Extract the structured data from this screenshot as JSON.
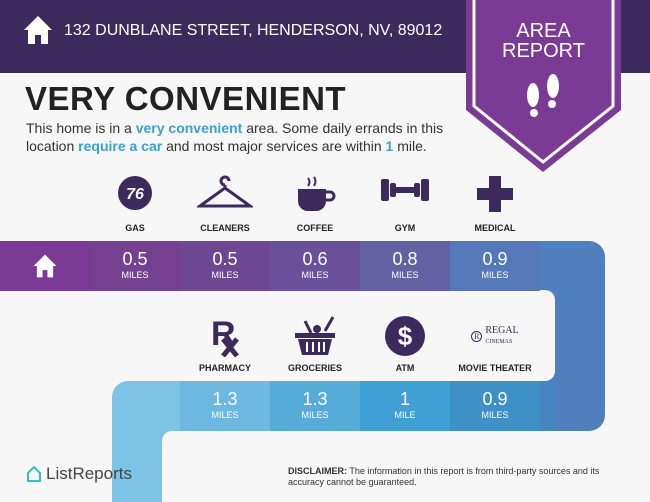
{
  "header": {
    "address": "132 DUNBLANE STREET, HENDERSON, NV, 89012",
    "badge_line1": "AREA",
    "badge_line2": "REPORT"
  },
  "title": "VERY CONVENIENT",
  "description": {
    "p1": "This home is in a ",
    "h1": "very convenient",
    "p2": " area. Some daily errands in this location ",
    "h2": "require a car",
    "p3": " and most major services are within ",
    "h3": "1",
    "p4": " mile."
  },
  "row1": [
    {
      "label": "GAS",
      "value": "0.5",
      "unit": "MILES",
      "icon": "gas-76-icon",
      "color": "#75408f"
    },
    {
      "label": "CLEANERS",
      "value": "0.5",
      "unit": "MILES",
      "icon": "hanger-icon",
      "color": "#6e4792"
    },
    {
      "label": "COFFEE",
      "value": "0.6",
      "unit": "MILES",
      "icon": "coffee-cup-icon",
      "color": "#6a5098"
    },
    {
      "label": "GYM",
      "value": "0.8",
      "unit": "MILES",
      "icon": "dumbbell-icon",
      "color": "#6461a3"
    },
    {
      "label": "MEDICAL",
      "value": "0.9",
      "unit": "MILES",
      "icon": "medical-cross-icon",
      "color": "#5478b8"
    }
  ],
  "row2": [
    {
      "label": "PHARMACY",
      "value": "1.3",
      "unit": "MILES",
      "icon": "rx-icon",
      "color": "#6cb8e0"
    },
    {
      "label": "GROCERIES",
      "value": "1.3",
      "unit": "MILES",
      "icon": "basket-icon",
      "color": "#56acd8"
    },
    {
      "label": "ATM",
      "value": "1",
      "unit": "MILE",
      "icon": "dollar-icon",
      "color": "#3ea0d4"
    },
    {
      "label": "MOVIE THEATER",
      "value": "0.9",
      "unit": "MILES",
      "icon": "regal-cinemas-logo",
      "color": "#3d90c8"
    }
  ],
  "regal": {
    "l1": "REGAL",
    "l2": "CINEMAS"
  },
  "footer": {
    "logo": "ListReports",
    "disclaimer_label": "DISCLAIMER:",
    "disclaimer": " The information in this report is from third-party sources and its accuracy cannot be guaranteed."
  }
}
